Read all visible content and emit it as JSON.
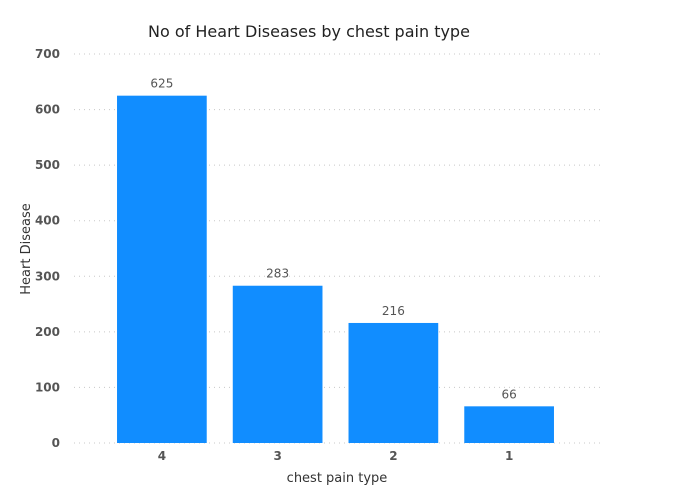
{
  "chart_data": {
    "type": "bar",
    "title": "No of Heart Diseases by chest pain type",
    "xlabel": "chest pain type",
    "ylabel": "Heart Disease",
    "categories": [
      "4",
      "3",
      "2",
      "1"
    ],
    "values": [
      625,
      283,
      216,
      66
    ],
    "ylim": [
      0,
      700
    ],
    "yticks": [
      0,
      100,
      200,
      300,
      400,
      500,
      600,
      700
    ],
    "grid": true,
    "bar_color": "#118DFF",
    "data_labels": true
  }
}
